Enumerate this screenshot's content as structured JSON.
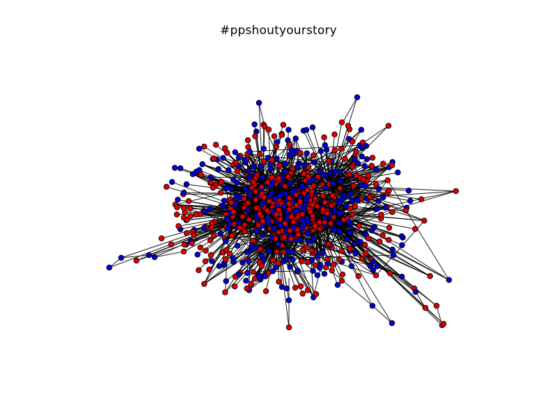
{
  "figure": {
    "title": "#ppshoutyourstory"
  },
  "colors": {
    "background": "#ffffff",
    "edge": "#000000",
    "node_outline": "#000000",
    "group_red": "#dd0000",
    "group_blue": "#0000cc"
  },
  "graph": {
    "layout": "force-directed",
    "node_groups": [
      "red",
      "blue"
    ],
    "axes_visible": false
  }
}
